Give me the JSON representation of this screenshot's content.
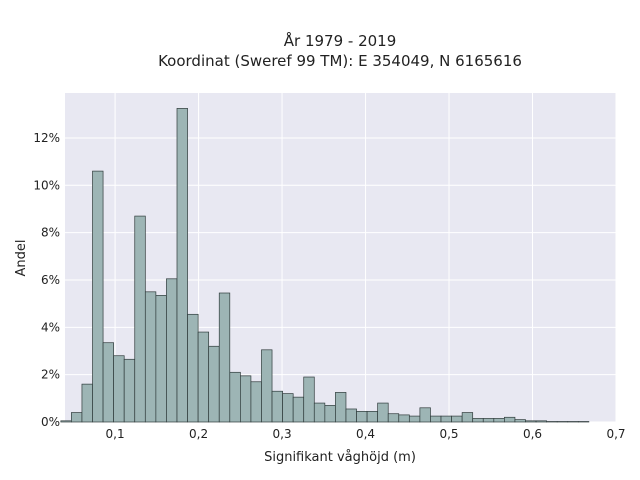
{
  "chart_data": {
    "type": "bar",
    "title_line1": "År 1979 - 2019",
    "title_line2": "Koordinat (Sweref 99 TM): E 354049, N 6165616",
    "xlabel": "Signifikant våghöjd (m)",
    "ylabel": "Andel",
    "xlim": [
      0.04,
      0.7
    ],
    "ylim": [
      0,
      13.9
    ],
    "x_ticks": [
      0.1,
      0.2,
      0.3,
      0.4,
      0.5,
      0.6,
      0.7
    ],
    "x_tick_labels": [
      "0,1",
      "0,2",
      "0,3",
      "0,4",
      "0,5",
      "0,6",
      "0,7"
    ],
    "y_ticks": [
      0,
      2,
      4,
      6,
      8,
      10,
      12
    ],
    "y_tick_labels": [
      "0%",
      "2%",
      "4%",
      "6%",
      "8%",
      "10%",
      "12%"
    ],
    "grid": true,
    "bin_edges": [
      0.035,
      0.04765,
      0.0603,
      0.07295,
      0.0856,
      0.09825,
      0.1109,
      0.12355,
      0.1362,
      0.14885,
      0.1615,
      0.17415,
      0.1868,
      0.19945,
      0.2121,
      0.22475,
      0.2374,
      0.25005,
      0.2627,
      0.27535,
      0.288,
      0.30065,
      0.3133,
      0.32595,
      0.3386,
      0.35125,
      0.3639,
      0.37655,
      0.3892,
      0.40185,
      0.4145,
      0.42715,
      0.4398,
      0.45245,
      0.4651,
      0.47775,
      0.4904,
      0.50305,
      0.5157,
      0.52835,
      0.541,
      0.55365,
      0.5663,
      0.57895,
      0.5916,
      0.60425,
      0.6169,
      0.62955,
      0.6422,
      0.65485,
      0.6675
    ],
    "values": [
      0.05,
      0.4,
      1.6,
      10.6,
      3.35,
      2.8,
      2.65,
      8.7,
      5.5,
      5.35,
      6.05,
      13.25,
      4.55,
      3.8,
      3.2,
      5.45,
      2.1,
      1.95,
      1.7,
      3.05,
      1.3,
      1.2,
      1.05,
      1.9,
      0.8,
      0.7,
      1.25,
      0.55,
      0.45,
      0.45,
      0.8,
      0.35,
      0.3,
      0.25,
      0.6,
      0.25,
      0.25,
      0.25,
      0.4,
      0.15,
      0.15,
      0.15,
      0.2,
      0.1,
      0.05,
      0.05,
      0.02,
      0.02,
      0.02,
      0.02
    ]
  }
}
